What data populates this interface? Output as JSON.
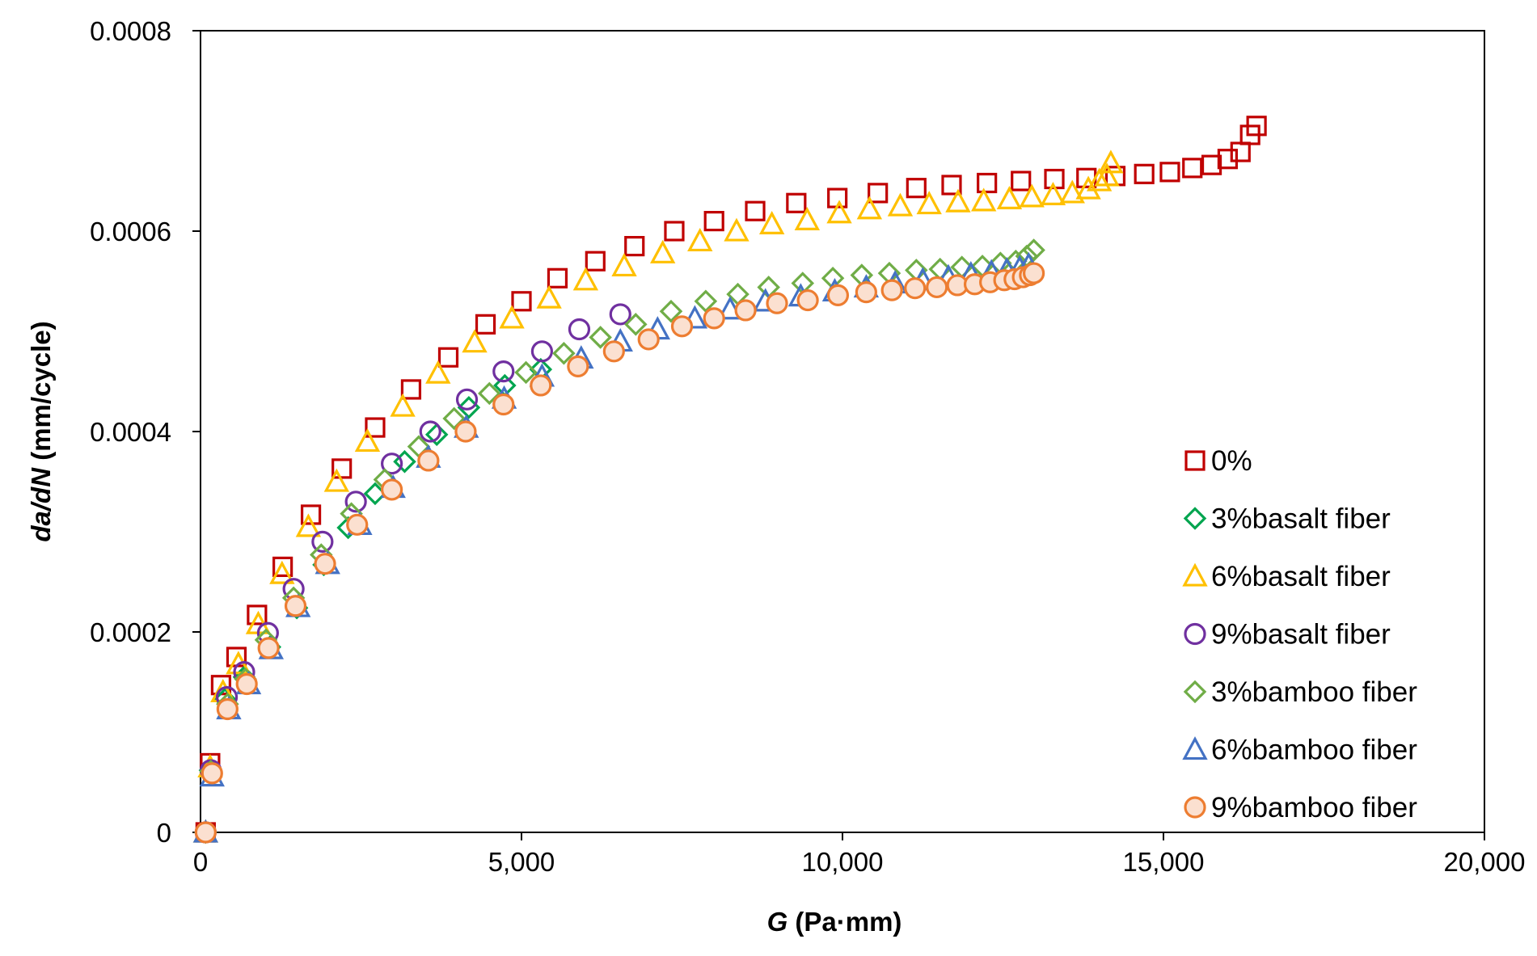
{
  "chart_data": {
    "type": "scatter",
    "title": "",
    "xlabel_italic": "G",
    "xlabel_rest": " (Pa·mm)",
    "ylabel_italic": "da/dN",
    "ylabel_rest": " (mm/cycle)",
    "xlim": [
      0,
      20000
    ],
    "ylim": [
      0,
      0.0008
    ],
    "xticks": [
      0,
      5000,
      10000,
      15000,
      20000
    ],
    "xtick_labels": [
      "0",
      "5,000",
      "10,000",
      "15,000",
      "20,000"
    ],
    "yticks": [
      0,
      0.0002,
      0.0004,
      0.0006,
      0.0008
    ],
    "ytick_labels": [
      "0",
      "0.0002",
      "0.0004",
      "0.0006",
      "0.0008"
    ],
    "grid": false,
    "legend_position": "right",
    "series": [
      {
        "name": "0%",
        "marker": "square",
        "color": "#C00000",
        "fill": "none",
        "points": [
          [
            80,
            0
          ],
          [
            150,
            6.9e-05
          ],
          [
            320,
            0.000147
          ],
          [
            560,
            0.000175
          ],
          [
            880,
            0.000217
          ],
          [
            1280,
            0.000265
          ],
          [
            1720,
            0.000317
          ],
          [
            2200,
            0.000363
          ],
          [
            2720,
            0.000404
          ],
          [
            3280,
            0.000442
          ],
          [
            3860,
            0.000474
          ],
          [
            4440,
            0.000507
          ],
          [
            5000,
            0.00053
          ],
          [
            5560,
            0.000553
          ],
          [
            6150,
            0.00057
          ],
          [
            6760,
            0.000585
          ],
          [
            7380,
            0.0006
          ],
          [
            8000,
            0.00061
          ],
          [
            8640,
            0.00062
          ],
          [
            9280,
            0.000628
          ],
          [
            9920,
            0.000633
          ],
          [
            10550,
            0.000638
          ],
          [
            11150,
            0.000643
          ],
          [
            11700,
            0.000646
          ],
          [
            12250,
            0.000648
          ],
          [
            12780,
            0.00065
          ],
          [
            13300,
            0.000652
          ],
          [
            13800,
            0.000653
          ],
          [
            14250,
            0.000655
          ],
          [
            14700,
            0.000657
          ],
          [
            15100,
            0.000659
          ],
          [
            15450,
            0.000663
          ],
          [
            15750,
            0.000666
          ],
          [
            16000,
            0.000672
          ],
          [
            16200,
            0.000679
          ],
          [
            16350,
            0.000696
          ],
          [
            16450,
            0.000705
          ]
        ]
      },
      {
        "name": "3%basalt fiber",
        "marker": "diamond",
        "color": "#00A54F",
        "fill": "none",
        "points": [
          [
            80,
            0
          ],
          [
            150,
            6.2e-05
          ],
          [
            380,
            0.000133
          ],
          [
            680,
            0.000155
          ],
          [
            1080,
            0.000185
          ],
          [
            1500,
            0.000224
          ],
          [
            1920,
            0.000267
          ],
          [
            2300,
            0.000304
          ],
          [
            2720,
            0.000338
          ],
          [
            3180,
            0.00037
          ],
          [
            3680,
            0.000397
          ],
          [
            4180,
            0.000424
          ],
          [
            4740,
            0.000446
          ],
          [
            5300,
            0.000462
          ]
        ]
      },
      {
        "name": "6%basalt fiber",
        "marker": "triangle",
        "color": "#FFC000",
        "fill": "none",
        "points": [
          [
            80,
            0
          ],
          [
            150,
            6.5e-05
          ],
          [
            350,
            0.00014
          ],
          [
            590,
            0.000168
          ],
          [
            900,
            0.000208
          ],
          [
            1270,
            0.000258
          ],
          [
            1680,
            0.000305
          ],
          [
            2120,
            0.00035
          ],
          [
            2600,
            0.00039
          ],
          [
            3150,
            0.000425
          ],
          [
            3700,
            0.000458
          ],
          [
            4270,
            0.000489
          ],
          [
            4850,
            0.000513
          ],
          [
            5430,
            0.000533
          ],
          [
            6000,
            0.000551
          ],
          [
            6600,
            0.000565
          ],
          [
            7200,
            0.000578
          ],
          [
            7780,
            0.00059
          ],
          [
            8350,
            0.0006
          ],
          [
            8900,
            0.000607
          ],
          [
            9450,
            0.000611
          ],
          [
            9950,
            0.000618
          ],
          [
            10420,
            0.000622
          ],
          [
            10900,
            0.000625
          ],
          [
            11350,
            0.000627
          ],
          [
            11800,
            0.000629
          ],
          [
            12200,
            0.00063
          ],
          [
            12600,
            0.000632
          ],
          [
            12950,
            0.000634
          ],
          [
            13280,
            0.000636
          ],
          [
            13580,
            0.000638
          ],
          [
            13830,
            0.000642
          ],
          [
            14000,
            0.00065
          ],
          [
            14120,
            0.000655
          ],
          [
            14180,
            0.000668
          ]
        ]
      },
      {
        "name": "9%basalt fiber",
        "marker": "circle",
        "color": "#7030A0",
        "fill": "none",
        "points": [
          [
            80,
            0
          ],
          [
            160,
            6.2e-05
          ],
          [
            410,
            0.000135
          ],
          [
            680,
            0.00016
          ],
          [
            1050,
            0.000199
          ],
          [
            1450,
            0.000243
          ],
          [
            1900,
            0.00029
          ],
          [
            2420,
            0.00033
          ],
          [
            2980,
            0.000368
          ],
          [
            3580,
            0.0004
          ],
          [
            4150,
            0.000432
          ],
          [
            4720,
            0.00046
          ],
          [
            5320,
            0.00048
          ],
          [
            5900,
            0.000502
          ],
          [
            6540,
            0.000517
          ]
        ]
      },
      {
        "name": "3%bamboo fiber",
        "marker": "diamond",
        "color": "#70AD47",
        "fill": "none",
        "points": [
          [
            80,
            0
          ],
          [
            160,
            6.1e-05
          ],
          [
            420,
            0.000128
          ],
          [
            700,
            0.000153
          ],
          [
            1020,
            0.000192
          ],
          [
            1450,
            0.000234
          ],
          [
            1880,
            0.000277
          ],
          [
            2350,
            0.000318
          ],
          [
            2870,
            0.000352
          ],
          [
            3400,
            0.000385
          ],
          [
            3950,
            0.000413
          ],
          [
            4500,
            0.000438
          ],
          [
            5070,
            0.000459
          ],
          [
            5660,
            0.000478
          ],
          [
            6230,
            0.000494
          ],
          [
            6780,
            0.000507
          ],
          [
            7330,
            0.00052
          ],
          [
            7870,
            0.00053
          ],
          [
            8370,
            0.000537
          ],
          [
            8850,
            0.000544
          ],
          [
            9380,
            0.000548
          ],
          [
            9850,
            0.000553
          ],
          [
            10300,
            0.000556
          ],
          [
            10730,
            0.000558
          ],
          [
            11150,
            0.000561
          ],
          [
            11520,
            0.000562
          ],
          [
            11860,
            0.000564
          ],
          [
            12180,
            0.000565
          ],
          [
            12460,
            0.000568
          ],
          [
            12700,
            0.00057
          ],
          [
            12870,
            0.000575
          ],
          [
            12980,
            0.000581
          ]
        ]
      },
      {
        "name": "6%bamboo fiber",
        "marker": "triangle",
        "color": "#4472C4",
        "fill": "none",
        "points": [
          [
            80,
            0
          ],
          [
            180,
            5.6e-05
          ],
          [
            440,
            0.000123
          ],
          [
            750,
            0.000148
          ],
          [
            1100,
            0.000183
          ],
          [
            1520,
            0.000225
          ],
          [
            1980,
            0.000268
          ],
          [
            2480,
            0.000307
          ],
          [
            3000,
            0.000344
          ],
          [
            3550,
            0.000374
          ],
          [
            4140,
            0.000404
          ],
          [
            4730,
            0.000433
          ],
          [
            5320,
            0.000455
          ],
          [
            5930,
            0.000473
          ],
          [
            6540,
            0.00049
          ],
          [
            7120,
            0.000502
          ],
          [
            7700,
            0.000513
          ],
          [
            8250,
            0.000522
          ],
          [
            8800,
            0.00053
          ],
          [
            9350,
            0.000535
          ],
          [
            9880,
            0.00054
          ],
          [
            10370,
            0.000544
          ],
          [
            10820,
            0.000548
          ],
          [
            11250,
            0.000551
          ],
          [
            11650,
            0.000554
          ],
          [
            12000,
            0.000557
          ],
          [
            12320,
            0.000559
          ],
          [
            12560,
            0.000561
          ],
          [
            12760,
            0.000563
          ],
          [
            12900,
            0.000566
          ]
        ]
      },
      {
        "name": "9%bamboo fiber",
        "marker": "circle-filled",
        "color": "#ED7D31",
        "fill": "#FBE0D0",
        "points": [
          [
            80,
            0
          ],
          [
            180,
            5.9e-05
          ],
          [
            420,
            0.000123
          ],
          [
            720,
            0.000148
          ],
          [
            1060,
            0.000184
          ],
          [
            1480,
            0.000226
          ],
          [
            1940,
            0.000268
          ],
          [
            2440,
            0.000307
          ],
          [
            2980,
            0.000342
          ],
          [
            3550,
            0.000371
          ],
          [
            4130,
            0.0004
          ],
          [
            4720,
            0.000427
          ],
          [
            5300,
            0.000446
          ],
          [
            5880,
            0.000465
          ],
          [
            6440,
            0.00048
          ],
          [
            6980,
            0.000492
          ],
          [
            7500,
            0.000505
          ],
          [
            8000,
            0.000513
          ],
          [
            8490,
            0.000521
          ],
          [
            8980,
            0.000528
          ],
          [
            9460,
            0.000531
          ],
          [
            9930,
            0.000536
          ],
          [
            10370,
            0.000539
          ],
          [
            10770,
            0.000541
          ],
          [
            11130,
            0.000543
          ],
          [
            11470,
            0.000544
          ],
          [
            11790,
            0.000546
          ],
          [
            12060,
            0.000547
          ],
          [
            12300,
            0.000549
          ],
          [
            12520,
            0.000551
          ],
          [
            12680,
            0.000552
          ],
          [
            12810,
            0.000554
          ],
          [
            12920,
            0.000556
          ],
          [
            12980,
            0.000558
          ]
        ]
      }
    ]
  }
}
